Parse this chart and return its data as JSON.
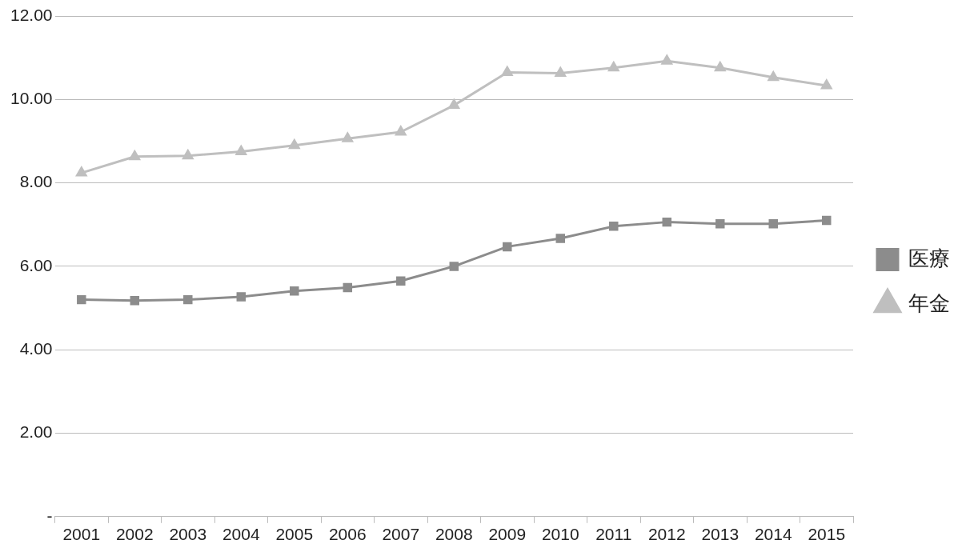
{
  "chart_data": {
    "type": "line",
    "categories": [
      "2001",
      "2002",
      "2003",
      "2004",
      "2005",
      "2006",
      "2007",
      "2008",
      "2009",
      "2010",
      "2011",
      "2012",
      "2013",
      "2014",
      "2015"
    ],
    "series": [
      {
        "name": "医療",
        "color": "#8c8c8c",
        "marker": "square",
        "values": [
          5.2,
          5.18,
          5.2,
          5.27,
          5.41,
          5.49,
          5.65,
          6.0,
          6.47,
          6.67,
          6.96,
          7.06,
          7.02,
          7.02,
          7.1
        ]
      },
      {
        "name": "年金",
        "color": "#bfbfbf",
        "marker": "triangle",
        "values": [
          8.24,
          8.63,
          8.65,
          8.75,
          8.9,
          9.06,
          9.22,
          9.86,
          10.65,
          10.63,
          10.76,
          10.92,
          10.76,
          10.53,
          10.33
        ]
      }
    ],
    "ylim": [
      0,
      12
    ],
    "yticks": [
      {
        "value": 0,
        "label": "-"
      },
      {
        "value": 2,
        "label": "2.00"
      },
      {
        "value": 4,
        "label": "4.00"
      },
      {
        "value": 6,
        "label": "6.00"
      },
      {
        "value": 8,
        "label": "8.00"
      },
      {
        "value": 10,
        "label": "10.00"
      },
      {
        "value": 12,
        "label": "12.00"
      }
    ],
    "grid": "y",
    "legend": "right",
    "line_style": "solid"
  }
}
